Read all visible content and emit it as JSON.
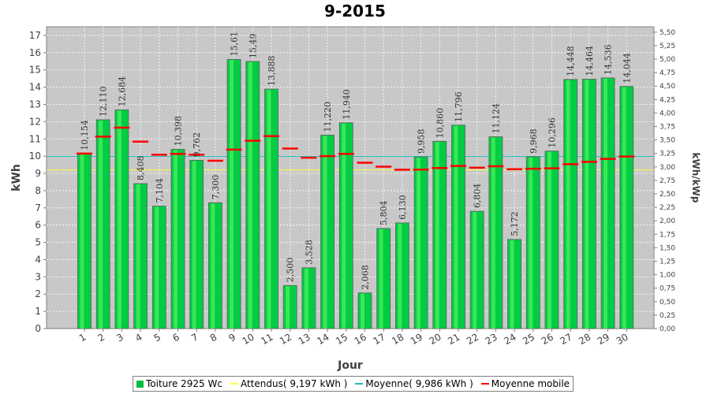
{
  "chart_data": {
    "type": "bar",
    "title": "9-2015",
    "xlabel": "Jour",
    "ylabel": "kWh",
    "y2label": "kWh/kWp",
    "ylim": [
      0,
      17.5
    ],
    "y2lim": [
      0,
      5.6
    ],
    "yticks": [
      "0",
      "1",
      "2",
      "3",
      "4",
      "5",
      "6",
      "7",
      "8",
      "9",
      "10",
      "11",
      "12",
      "13",
      "14",
      "15",
      "16",
      "17"
    ],
    "y2ticks": [
      "0,00",
      "0,25",
      "0,50",
      "0,75",
      "1,00",
      "1,25",
      "1,50",
      "1,75",
      "2,00",
      "2,25",
      "2,50",
      "2,75",
      "3,00",
      "3,25",
      "3,50",
      "3,75",
      "4,00",
      "4,25",
      "4,50",
      "4,75",
      "5,00",
      "5,25",
      "5,50"
    ],
    "categories": [
      "1",
      "2",
      "3",
      "4",
      "5",
      "6",
      "7",
      "8",
      "9",
      "10",
      "11",
      "12",
      "13",
      "14",
      "15",
      "16",
      "17",
      "18",
      "19",
      "20",
      "21",
      "22",
      "23",
      "24",
      "25",
      "26",
      "27",
      "28",
      "29",
      "30"
    ],
    "series": [
      {
        "name": "Toiture 2925 Wc",
        "values": [
          10.154,
          12.11,
          12.684,
          8.408,
          7.104,
          10.398,
          9.762,
          7.3,
          15.61,
          15.49,
          13.888,
          2.5,
          3.528,
          11.22,
          11.94,
          2.068,
          5.804,
          6.13,
          9.958,
          10.86,
          11.796,
          6.804,
          11.124,
          5.172,
          9.968,
          10.296,
          14.448,
          14.464,
          14.536,
          14.044
        ],
        "labels": [
          "10,154",
          "12,110",
          "12,684",
          "8,408",
          "7,104",
          "10,398",
          "9,762",
          "7,300",
          "15,61",
          "15,49",
          "13,888",
          "2,500",
          "3,528",
          "11,220",
          "11,940",
          "2,068",
          "5,804",
          "6,130",
          "9,958",
          "10,860",
          "11,796",
          "6,804",
          "11,124",
          "5,172",
          "9,968",
          "10,296",
          "14,448",
          "14,464",
          "14,536",
          "14,044"
        ],
        "color": "#00d040"
      },
      {
        "name": "Moyenne mobile",
        "values": [
          10.15,
          11.13,
          11.65,
          10.84,
          10.08,
          10.13,
          10.08,
          9.73,
          10.38,
          10.89,
          11.16,
          10.44,
          9.91,
          10.0,
          10.13,
          9.62,
          9.39,
          9.21,
          9.22,
          9.31,
          9.43,
          9.33,
          9.41,
          9.24,
          9.27,
          9.29,
          9.53,
          9.67,
          9.84,
          9.98
        ],
        "color": "#ff0000"
      }
    ],
    "reference_lines": [
      {
        "name": "Attendus( 9,197 kWh )",
        "value": 9.197,
        "color": "#ffff40"
      },
      {
        "name": "Moyenne( 9,986 kWh )",
        "value": 9.986,
        "color": "#20c0c0"
      }
    ],
    "legend_position": "bottom",
    "grid": true
  }
}
